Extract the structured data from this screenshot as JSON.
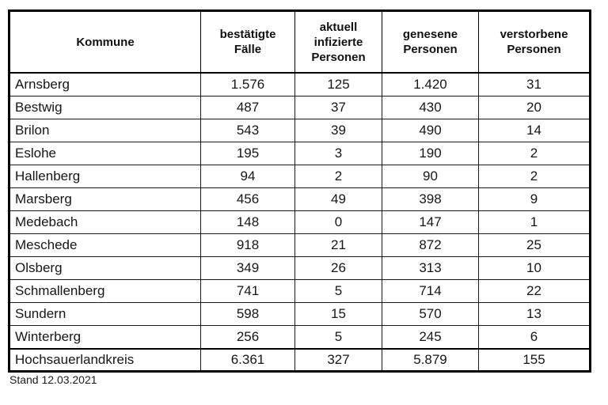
{
  "chart_data": {
    "type": "table",
    "columns": [
      "Kommune",
      "bestätigte\nFälle",
      "aktuell\ninfizierte\nPersonen",
      "genesene\nPersonen",
      "verstorbene\nPersonen"
    ],
    "rows": [
      {
        "kommune": "Arnsberg",
        "values": [
          "1.576",
          "125",
          "1.420",
          "31"
        ]
      },
      {
        "kommune": "Bestwig",
        "values": [
          "487",
          "37",
          "430",
          "20"
        ]
      },
      {
        "kommune": "Brilon",
        "values": [
          "543",
          "39",
          "490",
          "14"
        ]
      },
      {
        "kommune": "Eslohe",
        "values": [
          "195",
          "3",
          "190",
          "2"
        ]
      },
      {
        "kommune": "Hallenberg",
        "values": [
          "94",
          "2",
          "90",
          "2"
        ]
      },
      {
        "kommune": "Marsberg",
        "values": [
          "456",
          "49",
          "398",
          "9"
        ]
      },
      {
        "kommune": "Medebach",
        "values": [
          "148",
          "0",
          "147",
          "1"
        ]
      },
      {
        "kommune": "Meschede",
        "values": [
          "918",
          "21",
          "872",
          "25"
        ]
      },
      {
        "kommune": "Olsberg",
        "values": [
          "349",
          "26",
          "313",
          "10"
        ]
      },
      {
        "kommune": "Schmallenberg",
        "values": [
          "741",
          "5",
          "714",
          "22"
        ]
      },
      {
        "kommune": "Sundern",
        "values": [
          "598",
          "15",
          "570",
          "13"
        ]
      },
      {
        "kommune": "Winterberg",
        "values": [
          "256",
          "5",
          "245",
          "6"
        ]
      }
    ],
    "total_row": {
      "kommune": "Hochsauerlandkreis",
      "values": [
        "6.361",
        "327",
        "5.879",
        "155"
      ]
    }
  },
  "footer": {
    "stand_label": "Stand 12.03.2021"
  }
}
